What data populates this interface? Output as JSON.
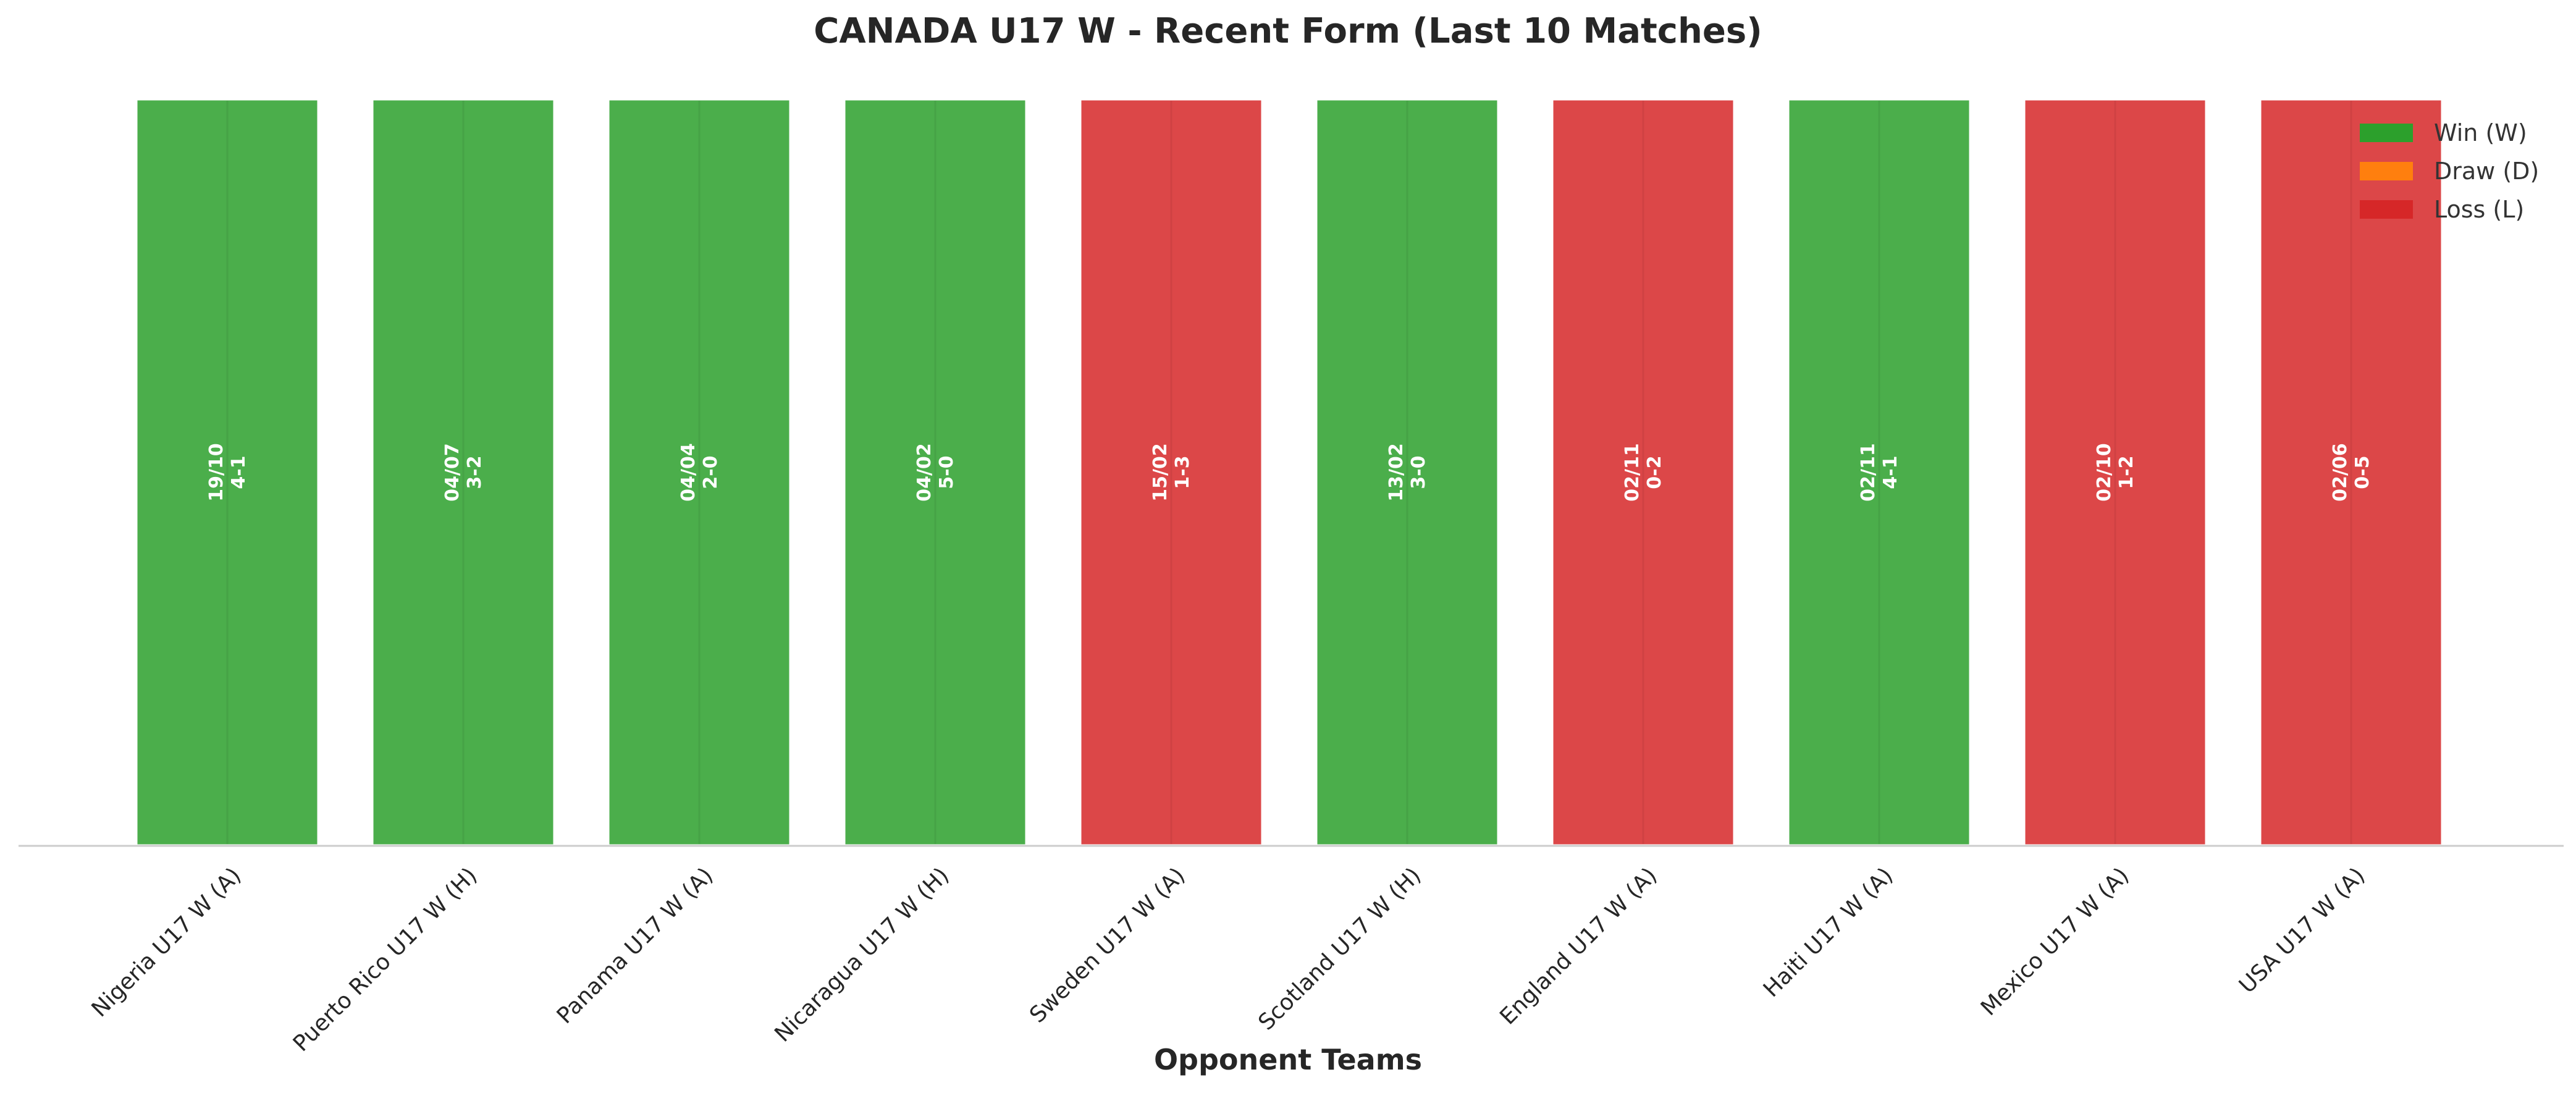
{
  "chart_data": {
    "type": "bar",
    "title": "CANADA U17 W - Recent Form (Last 10 Matches)",
    "xlabel": "Opponent Teams",
    "ylabel": "",
    "ylim": [
      0,
      1
    ],
    "grid": false,
    "legend_placement": "top-right",
    "categories": [
      "Nigeria U17 W (A)",
      "Puerto Rico U17 W (H)",
      "Panama U17 W (A)",
      "Nicaragua U17 W (H)",
      "Sweden U17 W (A)",
      "Scotland U17 W (H)",
      "England U17 W (A)",
      "Haiti U17 W (A)",
      "Mexico U17 W (A)",
      "USA U17 W (A)"
    ],
    "values": [
      1,
      1,
      1,
      1,
      1,
      1,
      1,
      1,
      1,
      1
    ],
    "results": [
      "W",
      "W",
      "W",
      "W",
      "L",
      "W",
      "L",
      "W",
      "L",
      "L"
    ],
    "dates": [
      "19/10",
      "04/07",
      "04/04",
      "04/02",
      "15/02",
      "13/02",
      "02/11",
      "02/11",
      "02/10",
      "02/06"
    ],
    "scores": [
      "4-1",
      "3-2",
      "2-0",
      "5-0",
      "1-3",
      "3-0",
      "0-2",
      "4-1",
      "1-2",
      "0-5"
    ],
    "legend": [
      {
        "key": "W",
        "label": "Win (W)",
        "color": "#2ca02c"
      },
      {
        "key": "D",
        "label": "Draw (D)",
        "color": "#ff7f0e"
      },
      {
        "key": "L",
        "label": "Loss (L)",
        "color": "#d62728"
      }
    ]
  }
}
